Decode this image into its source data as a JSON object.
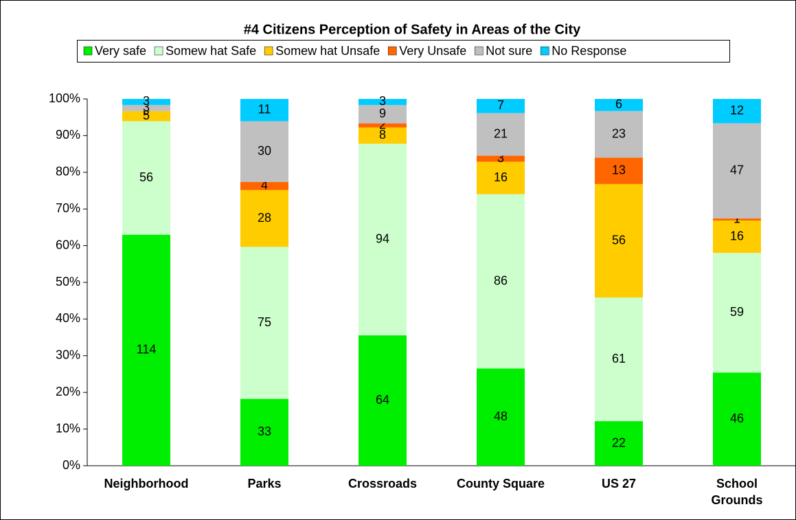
{
  "chart_data": {
    "type": "stacked_percent_bar",
    "title": "#4  Citizens Perception of Safety in Areas of the City",
    "categories": [
      "Neighborhood",
      "Parks",
      "Crossroads",
      "County Square",
      "US 27",
      "School Grounds"
    ],
    "series": [
      {
        "name": "Very safe",
        "color": "#00ee00",
        "values": [
          114,
          33,
          64,
          48,
          22,
          46
        ]
      },
      {
        "name": "Somew hat Safe",
        "color": "#ccffcc",
        "values": [
          56,
          75,
          94,
          86,
          61,
          59
        ]
      },
      {
        "name": "Somew hat Unsafe",
        "color": "#ffcc00",
        "values": [
          5,
          28,
          8,
          16,
          56,
          16
        ]
      },
      {
        "name": "Very Unsafe",
        "color": "#ff6600",
        "values": [
          0,
          4,
          2,
          3,
          13,
          1
        ]
      },
      {
        "name": "Not sure",
        "color": "#c0c0c0",
        "values": [
          3,
          30,
          9,
          21,
          23,
          47
        ]
      },
      {
        "name": "No Response",
        "color": "#00ccff",
        "values": [
          3,
          11,
          3,
          7,
          6,
          12
        ]
      }
    ],
    "ylim": [
      0,
      100
    ],
    "yticks": [
      {
        "value": 0,
        "label": "0%"
      },
      {
        "value": 10,
        "label": "10%"
      },
      {
        "value": 20,
        "label": "20%"
      },
      {
        "value": 30,
        "label": "30%"
      },
      {
        "value": 40,
        "label": "40%"
      },
      {
        "value": 50,
        "label": "50%"
      },
      {
        "value": 60,
        "label": "60%"
      },
      {
        "value": 70,
        "label": "70%"
      },
      {
        "value": 80,
        "label": "80%"
      },
      {
        "value": 90,
        "label": "90%"
      },
      {
        "value": 100,
        "label": "100%"
      }
    ],
    "legend": "top"
  }
}
